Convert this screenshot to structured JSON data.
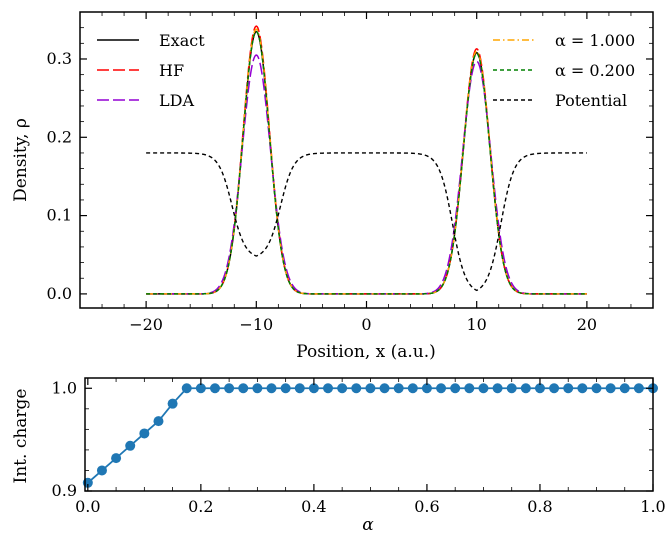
{
  "chart_data": [
    {
      "type": "line",
      "title": "",
      "xlabel": "Position, $x$ (a.u.)",
      "xlabel_text": "Position, x (a.u.)",
      "ylabel_text": "Density, ρ",
      "xlim": [
        -26,
        26
      ],
      "ylim": [
        -0.018,
        0.36
      ],
      "xticks": [
        -20,
        -10,
        0,
        10,
        20
      ],
      "xtick_labels": [
        "−20",
        "−10",
        "0",
        "10",
        "20"
      ],
      "yticks": [
        0.0,
        0.1,
        0.2,
        0.3
      ],
      "ytick_labels": [
        "0.0",
        "0.1",
        "0.2",
        "0.3"
      ],
      "grid": false,
      "legend_placement": "top, two columns (left and right)",
      "series": [
        {
          "name": "Exact",
          "color": "#000000",
          "dash": "solid",
          "peaks": [
            {
              "center": -10,
              "height": 0.335,
              "sigma": 1.2
            },
            {
              "center": 10,
              "height": 0.308,
              "sigma": 1.2
            }
          ]
        },
        {
          "name": "HF",
          "color": "#ff0000",
          "dash": "long-dash",
          "peaks": [
            {
              "center": -10,
              "height": 0.342,
              "sigma": 1.2
            },
            {
              "center": 10,
              "height": 0.313,
              "sigma": 1.2
            }
          ]
        },
        {
          "name": "LDA",
          "color": "#9400d3",
          "dash": "long-dash",
          "peaks": [
            {
              "center": -10,
              "height": 0.305,
              "sigma": 1.28
            },
            {
              "center": 10,
              "height": 0.297,
              "sigma": 1.28
            }
          ]
        },
        {
          "name": "α = 1.000",
          "color": "#ffa500",
          "dash": "dash-dot",
          "peaks": [
            {
              "center": -10,
              "height": 0.338,
              "sigma": 1.2
            },
            {
              "center": 10,
              "height": 0.31,
              "sigma": 1.2
            }
          ]
        },
        {
          "name": "α = 0.200",
          "color": "#008000",
          "dash": "dashed",
          "peaks": [
            {
              "center": -10,
              "height": 0.335,
              "sigma": 1.2
            },
            {
              "center": 10,
              "height": 0.307,
              "sigma": 1.2
            }
          ]
        },
        {
          "name": "Potential",
          "color": "#000000",
          "dash": "dashed",
          "plateau": 0.18,
          "wells": [
            {
              "center": -10,
              "depth": 0.135,
              "width": 2.2
            },
            {
              "center": 10,
              "depth": 0.18,
              "width": 2.2
            }
          ],
          "x_range": [
            -20,
            20
          ]
        }
      ]
    },
    {
      "type": "line",
      "title": "",
      "xlabel_text": "α",
      "ylabel_text": "Int. charge",
      "xlim": [
        -0.005,
        1.0
      ],
      "ylim": [
        0.9,
        1.01
      ],
      "xticks": [
        0.0,
        0.2,
        0.4,
        0.6,
        0.8,
        1.0
      ],
      "xtick_labels": [
        "0.0",
        "0.2",
        "0.4",
        "0.6",
        "0.8",
        "1.0"
      ],
      "yticks": [
        0.9,
        1.0
      ],
      "ytick_labels": [
        "0.9",
        "1.0"
      ],
      "grid": false,
      "series": [
        {
          "name": "",
          "color": "#1f77b4",
          "marker": "circle",
          "x": [
            0.0,
            0.025,
            0.05,
            0.075,
            0.1,
            0.125,
            0.15,
            0.175,
            0.2,
            0.225,
            0.25,
            0.275,
            0.3,
            0.325,
            0.35,
            0.375,
            0.4,
            0.425,
            0.45,
            0.475,
            0.5,
            0.525,
            0.55,
            0.575,
            0.6,
            0.625,
            0.65,
            0.675,
            0.7,
            0.725,
            0.75,
            0.775,
            0.8,
            0.825,
            0.85,
            0.875,
            0.9,
            0.925,
            0.95,
            0.975,
            1.0
          ],
          "y": [
            0.908,
            0.92,
            0.932,
            0.944,
            0.956,
            0.968,
            0.985,
            1.0,
            1.0,
            1.0,
            1.0,
            1.0,
            1.0,
            1.0,
            1.0,
            1.0,
            1.0,
            1.0,
            1.0,
            1.0,
            1.0,
            1.0,
            1.0,
            1.0,
            1.0,
            1.0,
            1.0,
            1.0,
            1.0,
            1.0,
            1.0,
            1.0,
            1.0,
            1.0,
            1.0,
            1.0,
            1.0,
            1.0,
            1.0,
            1.0,
            1.0
          ]
        }
      ]
    }
  ]
}
